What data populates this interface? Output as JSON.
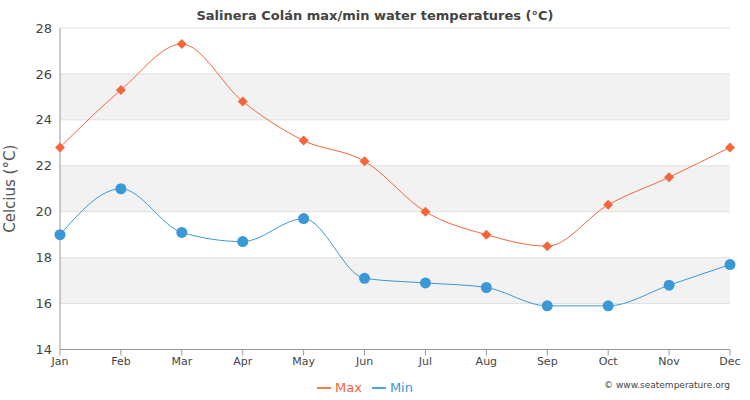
{
  "chart_data": {
    "type": "line",
    "title": "Salinera Colán max/min water temperatures (°C)",
    "y_label": "Celcius (°C)",
    "categories": [
      "Jan",
      "Feb",
      "Mar",
      "Apr",
      "May",
      "Jun",
      "Jul",
      "Aug",
      "Sep",
      "Oct",
      "Nov",
      "Dec"
    ],
    "series": [
      {
        "name": "Max",
        "color": "#f4663a",
        "marker": "diamond",
        "values": [
          22.8,
          25.3,
          27.3,
          24.8,
          23.1,
          22.2,
          20.0,
          19.0,
          18.5,
          20.3,
          21.5,
          22.8
        ]
      },
      {
        "name": "Min",
        "color": "#3a98d6",
        "marker": "circle",
        "values": [
          19.0,
          21.0,
          19.1,
          18.7,
          19.7,
          17.1,
          16.9,
          16.7,
          15.9,
          15.9,
          16.8,
          17.7
        ]
      }
    ],
    "ylim": [
      14,
      28
    ],
    "yticks": [
      14,
      16,
      18,
      20,
      22,
      24,
      26,
      28
    ],
    "grid": true,
    "legend": "bottom",
    "annotations": [
      "© www.seatemperature.org"
    ]
  }
}
